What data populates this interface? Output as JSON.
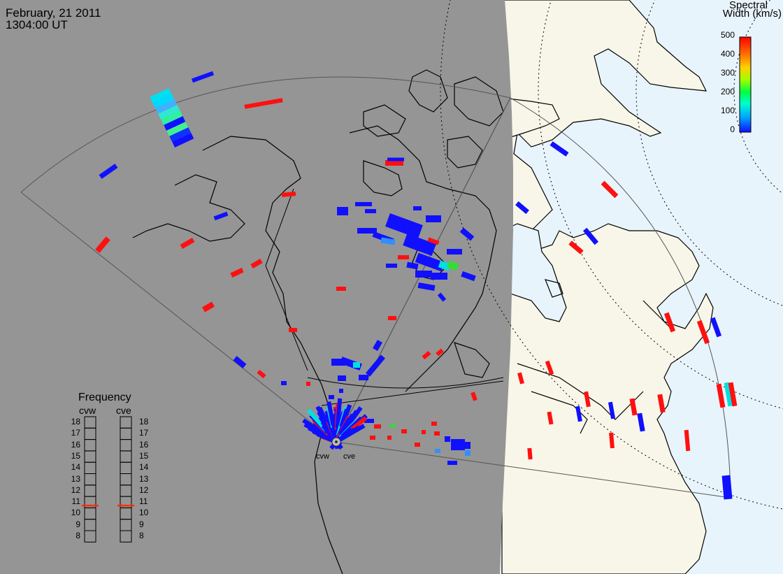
{
  "header": {
    "date": "February, 21 2011",
    "time": "1304:00 UT"
  },
  "colorbar": {
    "title_line1": "Spectral",
    "title_line2": "Width (km/s)",
    "ticks": [
      "500",
      "400",
      "300",
      "200",
      "100",
      "0"
    ],
    "min": 0,
    "max": 500,
    "colors": [
      "#1010ff",
      "#00a0ff",
      "#00ffd0",
      "#00ff40",
      "#a0ff00",
      "#ffd000",
      "#ff7000",
      "#ff0000"
    ]
  },
  "radars": {
    "west_label": "cvw",
    "east_label": "cve"
  },
  "frequency": {
    "title": "Frequency",
    "cvw_label": "cvw",
    "cve_label": "cve",
    "scale": [
      "18",
      "17",
      "16",
      "15",
      "14",
      "13",
      "12",
      "11",
      "10",
      "9",
      "8"
    ],
    "cvw_value": 10.7,
    "cve_value": 10.7,
    "marker_color": "#ff3000"
  },
  "map": {
    "night_color": "#959595",
    "day_land_color": "#f8f6e8",
    "day_ocean_color": "#e8f4fc"
  }
}
